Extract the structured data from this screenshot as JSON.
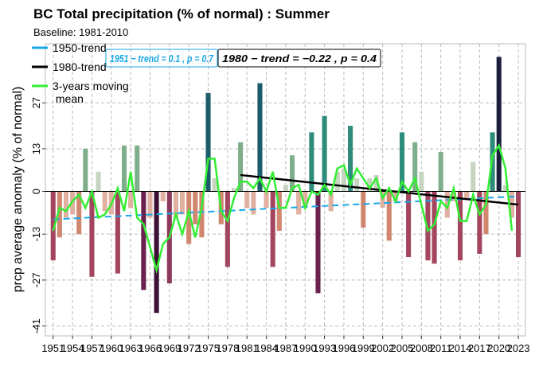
{
  "chart_data": {
    "type": "bar",
    "title": "BC Total precipitation (% of normal) : Summer",
    "subtitle": "Baseline: 1981-2010",
    "y_label": "prcp average anomaly (% of normal)",
    "x": [
      1951,
      1952,
      1953,
      1954,
      1955,
      1956,
      1957,
      1958,
      1959,
      1960,
      1961,
      1962,
      1963,
      1964,
      1965,
      1966,
      1967,
      1968,
      1969,
      1970,
      1971,
      1972,
      1973,
      1974,
      1975,
      1976,
      1977,
      1978,
      1979,
      1980,
      1981,
      1982,
      1983,
      1984,
      1985,
      1986,
      1987,
      1988,
      1989,
      1990,
      1991,
      1992,
      1993,
      1994,
      1995,
      1996,
      1997,
      1998,
      1999,
      2000,
      2001,
      2002,
      2003,
      2004,
      2005,
      2006,
      2007,
      2008,
      2009,
      2010,
      2011,
      2012,
      2013,
      2014,
      2015,
      2016,
      2017,
      2018,
      2019,
      2020,
      2021,
      2022,
      2023
    ],
    "values": [
      -21,
      -14,
      -8,
      -7,
      -13,
      13,
      -26,
      6,
      -6,
      -7,
      -25,
      14,
      -5,
      14,
      -30,
      -8,
      -37,
      -3,
      -28,
      -8,
      -7,
      -16,
      -10,
      -14,
      30,
      4,
      -10,
      -23,
      1,
      15,
      -5,
      -7,
      33,
      -5,
      -23,
      -12,
      2,
      11,
      -7,
      -5,
      18,
      -31,
      23,
      -6,
      6,
      7,
      20,
      4,
      -11,
      4,
      5,
      -5,
      -15,
      -3,
      18,
      -20,
      15,
      6,
      -21,
      -22,
      12,
      -8,
      -3,
      -21,
      -2,
      9,
      -19,
      -13,
      18,
      41,
      2,
      -8,
      -20
    ],
    "colors": [
      "#a3455f",
      "#d0866f",
      "#e0b0a0",
      "#e0b0a0",
      "#d0866f",
      "#7fae8a",
      "#a3455f",
      "#c5d5bf",
      "#e0b0a0",
      "#e0b0a0",
      "#a3455f",
      "#7fae8a",
      "#e0b0a0",
      "#7fae8a",
      "#6b2150",
      "#e0b0a0",
      "#3d0f35",
      "#e0b0a0",
      "#8e3a5c",
      "#e0b0a0",
      "#e0b0a0",
      "#d0866f",
      "#d0866f",
      "#d0866f",
      "#1d5d6b",
      "#c5d5bf",
      "#d0866f",
      "#a3455f",
      "#c5d5bf",
      "#7fae8a",
      "#e0b0a0",
      "#e0b0a0",
      "#1d5d6b",
      "#e0b0a0",
      "#a3455f",
      "#d0866f",
      "#c5d5bf",
      "#7fae8a",
      "#e0b0a0",
      "#e0b0a0",
      "#2e8c7a",
      "#6b2150",
      "#2e8c7a",
      "#e0b0a0",
      "#c5d5bf",
      "#c5d5bf",
      "#2e8c7a",
      "#c5d5bf",
      "#d0866f",
      "#c5d5bf",
      "#c5d5bf",
      "#e0b0a0",
      "#d0866f",
      "#e0b0a0",
      "#2e8c7a",
      "#a3455f",
      "#7fae8a",
      "#c5d5bf",
      "#a3455f",
      "#a3455f",
      "#7fae8a",
      "#e0b0a0",
      "#e0b0a0",
      "#a3455f",
      "#e0b0a0",
      "#c5d5bf",
      "#a3455f",
      "#d0866f",
      "#2e8c7a",
      "#1b1f3d",
      "#c5d5bf",
      "#e0b0a0",
      "#a3455f"
    ],
    "series": [
      {
        "name": "1950-trend",
        "color": "#1aa7e8",
        "dashed": true,
        "x": [
          1951,
          2023
        ],
        "values": [
          -8.5,
          -1.5
        ]
      },
      {
        "name": "1980-trend",
        "color": "#000000",
        "dashed": false,
        "x": [
          1980,
          2023
        ],
        "values": [
          5,
          -4
        ]
      },
      {
        "name": "3-years moving\n mean",
        "color": "#33ee33",
        "dashed": false,
        "values": [
          -12,
          -5,
          -6,
          -3,
          -1,
          -5,
          0,
          -8,
          -7,
          -4,
          1,
          -6,
          6,
          -8,
          -10,
          -17,
          -24,
          -16,
          -14,
          -7,
          -13,
          -6,
          -14,
          -5,
          10,
          10,
          -6,
          -9,
          -2,
          3,
          3,
          1,
          4,
          0,
          6,
          -5,
          -5,
          1,
          2,
          -5,
          0,
          -1,
          2,
          -1,
          7,
          8,
          2,
          7,
          4,
          1,
          4,
          -2,
          1,
          -3,
          3,
          0,
          4,
          -4,
          -12,
          -10,
          -3,
          -5,
          1,
          -9,
          -9,
          -1,
          -7,
          -4,
          11,
          14,
          7,
          -12,
          null
        ]
      }
    ],
    "annotations": [
      {
        "text": "1951 − trend = 0.1 , p = 0.7",
        "color": "#1aa7e8"
      },
      {
        "text": "1980 − trend = −0.22 , p = 0.4",
        "color": "#000000"
      }
    ],
    "xlim": [
      1949.8,
      2024.1
    ],
    "xticks": [
      1951,
      1954,
      1957,
      1960,
      1963,
      1966,
      1969,
      1972,
      1975,
      1978,
      1981,
      1984,
      1987,
      1990,
      1993,
      1996,
      1999,
      2002,
      2005,
      2008,
      2011,
      2014,
      2017,
      2020,
      2023
    ],
    "ylim": [
      -44,
      45
    ],
    "yticks": [
      -41,
      -27,
      -13,
      0,
      13,
      27
    ],
    "grid": true
  }
}
